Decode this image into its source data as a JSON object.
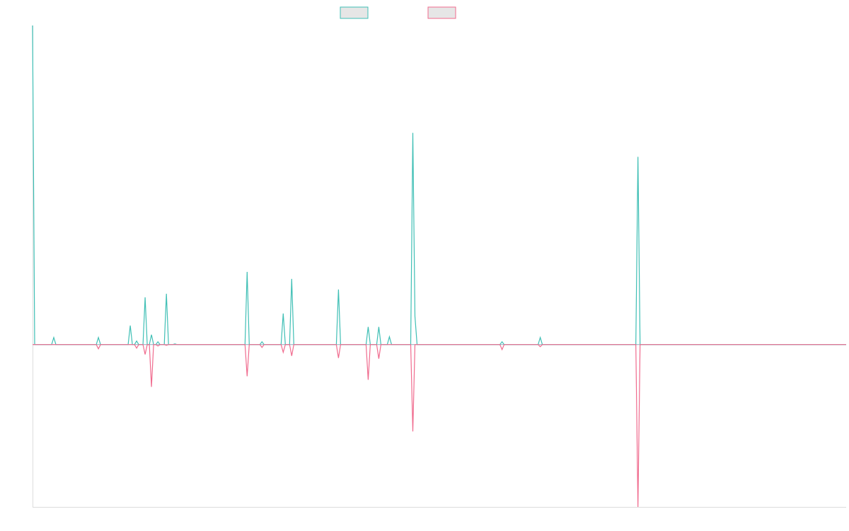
{
  "chart_data": {
    "type": "line",
    "title": "",
    "xlabel": "",
    "ylabel": "",
    "grid": false,
    "legend_position": "top-center",
    "y_range": [
      -230,
      452
    ],
    "series": [
      {
        "color": "#3fbfb5",
        "legend_fill": "#e6e6e6",
        "points": [
          [
            0,
            452
          ],
          [
            1,
            0
          ],
          [
            9,
            0
          ],
          [
            10,
            10
          ],
          [
            11,
            0
          ],
          [
            30,
            0
          ],
          [
            31,
            10
          ],
          [
            32,
            0
          ],
          [
            45,
            0
          ],
          [
            46,
            27
          ],
          [
            47,
            0
          ],
          [
            48,
            0
          ],
          [
            49,
            5
          ],
          [
            50,
            0
          ],
          [
            52,
            0
          ],
          [
            53,
            67
          ],
          [
            54,
            0
          ],
          [
            55,
            0
          ],
          [
            56,
            14
          ],
          [
            57,
            0
          ],
          [
            58,
            0
          ],
          [
            59,
            4
          ],
          [
            60,
            0
          ],
          [
            62,
            0
          ],
          [
            63,
            72
          ],
          [
            64,
            0
          ],
          [
            66,
            0
          ],
          [
            67,
            1
          ],
          [
            68,
            0
          ],
          [
            100,
            0
          ],
          [
            101,
            103
          ],
          [
            102,
            0
          ],
          [
            107,
            0
          ],
          [
            108,
            4
          ],
          [
            109,
            0
          ],
          [
            117,
            0
          ],
          [
            118,
            44
          ],
          [
            119,
            0
          ],
          [
            121,
            0
          ],
          [
            122,
            93
          ],
          [
            123,
            0
          ],
          [
            143,
            0
          ],
          [
            144,
            78
          ],
          [
            145,
            0
          ],
          [
            157,
            0
          ],
          [
            158,
            25
          ],
          [
            159,
            0
          ],
          [
            162,
            0
          ],
          [
            163,
            25
          ],
          [
            164,
            0
          ],
          [
            167,
            0
          ],
          [
            168,
            11
          ],
          [
            169,
            0
          ],
          [
            178,
            0
          ],
          [
            179,
            300
          ],
          [
            180,
            40
          ],
          [
            181,
            0
          ],
          [
            220,
            0
          ],
          [
            221,
            4
          ],
          [
            222,
            0
          ],
          [
            238,
            0
          ],
          [
            239,
            10
          ],
          [
            240,
            0
          ],
          [
            284,
            0
          ],
          [
            285,
            266
          ],
          [
            286,
            0
          ],
          [
            383,
            0
          ]
        ]
      },
      {
        "color": "#f06b8e",
        "legend_fill": "#e6e6e6",
        "points": [
          [
            0,
            0
          ],
          [
            30,
            0
          ],
          [
            31,
            -6
          ],
          [
            32,
            0
          ],
          [
            48,
            0
          ],
          [
            49,
            -5
          ],
          [
            50,
            0
          ],
          [
            52,
            0
          ],
          [
            53,
            -14
          ],
          [
            54,
            0
          ],
          [
            55,
            0
          ],
          [
            56,
            -60
          ],
          [
            57,
            0
          ],
          [
            58,
            0
          ],
          [
            59,
            -2
          ],
          [
            60,
            0
          ],
          [
            62,
            0
          ],
          [
            63,
            -1
          ],
          [
            64,
            0
          ],
          [
            100,
            0
          ],
          [
            101,
            -45
          ],
          [
            102,
            0
          ],
          [
            107,
            0
          ],
          [
            108,
            -4
          ],
          [
            109,
            0
          ],
          [
            117,
            0
          ],
          [
            118,
            -11
          ],
          [
            119,
            0
          ],
          [
            121,
            0
          ],
          [
            122,
            -16
          ],
          [
            123,
            0
          ],
          [
            143,
            0
          ],
          [
            144,
            -19
          ],
          [
            145,
            0
          ],
          [
            157,
            0
          ],
          [
            158,
            -50
          ],
          [
            159,
            0
          ],
          [
            162,
            0
          ],
          [
            163,
            -20
          ],
          [
            164,
            0
          ],
          [
            178,
            0
          ],
          [
            179,
            -123
          ],
          [
            180,
            0
          ],
          [
            220,
            0
          ],
          [
            221,
            -7
          ],
          [
            222,
            0
          ],
          [
            238,
            0
          ],
          [
            239,
            -3
          ],
          [
            240,
            0
          ],
          [
            284,
            0
          ],
          [
            285,
            -230
          ],
          [
            286,
            0
          ],
          [
            383,
            0
          ]
        ]
      }
    ]
  }
}
